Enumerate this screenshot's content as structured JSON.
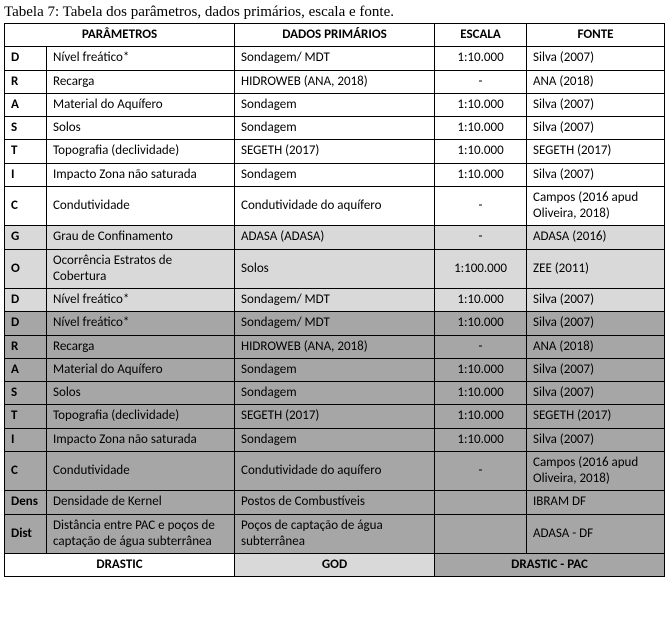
{
  "caption": "Tabela 7: Tabela dos parâmetros, dados primários, escala e fonte.",
  "headers": {
    "parametros": "PARÂMETROS",
    "dados": "DADOS PRIMÁRIOS",
    "escala": "ESCALA",
    "fonte": "FONTE"
  },
  "colors": {
    "white": "#ffffff",
    "light": "#d9d9d9",
    "dark": "#a6a6a6"
  },
  "rows": [
    {
      "bg": "#ffffff",
      "code": "D",
      "param": "Nível freático*",
      "dados": "Sondagem/ MDT",
      "escala": "1:10.000",
      "fonte": "Silva (2007)"
    },
    {
      "bg": "#ffffff",
      "code": "R",
      "param": "Recarga",
      "dados": "HIDROWEB (ANA, 2018)",
      "escala": "-",
      "fonte": "ANA (2018)"
    },
    {
      "bg": "#ffffff",
      "code": "A",
      "param": "Material do Aquífero",
      "dados": "Sondagem",
      "escala": "1:10.000",
      "fonte": "Silva (2007)"
    },
    {
      "bg": "#ffffff",
      "code": "S",
      "param": "Solos",
      "dados": "Sondagem",
      "escala": "1:10.000",
      "fonte": "Silva (2007)"
    },
    {
      "bg": "#ffffff",
      "code": "T",
      "param": "Topografia (declividade)",
      "dados": "SEGETH (2017)",
      "escala": "1:10.000",
      "fonte": "SEGETH (2017)"
    },
    {
      "bg": "#ffffff",
      "code": "I",
      "param": "Impacto Zona não saturada",
      "dados": "Sondagem",
      "escala": "1:10.000",
      "fonte": "Silva (2007)"
    },
    {
      "bg": "#ffffff",
      "code": "C",
      "param": "Condutividade",
      "dados": "Condutividade do aquífero",
      "escala": "-",
      "fonte": "Campos (2016 apud Oliveira, 2018)"
    },
    {
      "bg": "#d9d9d9",
      "code": "G",
      "param": "Grau de Confinamento",
      "dados": "ADASA (ADASA)",
      "escala": "-",
      "fonte": "ADASA (2016)"
    },
    {
      "bg": "#d9d9d9",
      "code": "O",
      "param": "Ocorrência Estratos de Cobertura",
      "dados": "Solos",
      "escala": "1:100.000",
      "fonte": "ZEE (2011)"
    },
    {
      "bg": "#d9d9d9",
      "code": "D",
      "param": "Nível freático*",
      "dados": "Sondagem/ MDT",
      "escala": "1:10.000",
      "fonte": "Silva (2007)"
    },
    {
      "bg": "#a6a6a6",
      "code": "D",
      "param": "Nível freático*",
      "dados": "Sondagem/ MDT",
      "escala": "1:10.000",
      "fonte": "Silva (2007)"
    },
    {
      "bg": "#a6a6a6",
      "code": "R",
      "param": "Recarga",
      "dados": "HIDROWEB (ANA, 2018)",
      "escala": "-",
      "fonte": "ANA (2018)"
    },
    {
      "bg": "#a6a6a6",
      "code": "A",
      "param": "Material do Aquífero",
      "dados": "Sondagem",
      "escala": "1:10.000",
      "fonte": "Silva (2007)"
    },
    {
      "bg": "#a6a6a6",
      "code": "S",
      "param": "Solos",
      "dados": "Sondagem",
      "escala": "1:10.000",
      "fonte": "Silva (2007)"
    },
    {
      "bg": "#a6a6a6",
      "code": "T",
      "param": "Topografia (declividade)",
      "dados": "SEGETH (2017)",
      "escala": "1:10.000",
      "fonte": "SEGETH (2017)"
    },
    {
      "bg": "#a6a6a6",
      "code": "I",
      "param": "Impacto Zona não saturada",
      "dados": "Sondagem",
      "escala": "1:10.000",
      "fonte": "Silva (2007)"
    },
    {
      "bg": "#a6a6a6",
      "code": "C",
      "param": "Condutividade",
      "dados": "Condutividade do aquífero",
      "escala": "-",
      "fonte": "Campos (2016 apud Oliveira, 2018)"
    },
    {
      "bg": "#a6a6a6",
      "code": "Dens",
      "param": "Densidade de Kernel",
      "dados": "Postos de Combustíveis",
      "escala": "",
      "fonte": "IBRAM DF"
    },
    {
      "bg": "#a6a6a6",
      "code": "Dist",
      "param": "Distância entre PAC e poços de captação de água subterrânea",
      "dados": "Poços de captação de água subterrânea",
      "escala": "",
      "fonte": "ADASA - DF"
    }
  ],
  "legend": {
    "drastic": {
      "label": "DRASTIC",
      "bg": "#ffffff"
    },
    "god": {
      "label": "GOD",
      "bg": "#d9d9d9"
    },
    "drastic_pac": {
      "label": "DRASTIC - PAC",
      "bg": "#a6a6a6"
    }
  }
}
